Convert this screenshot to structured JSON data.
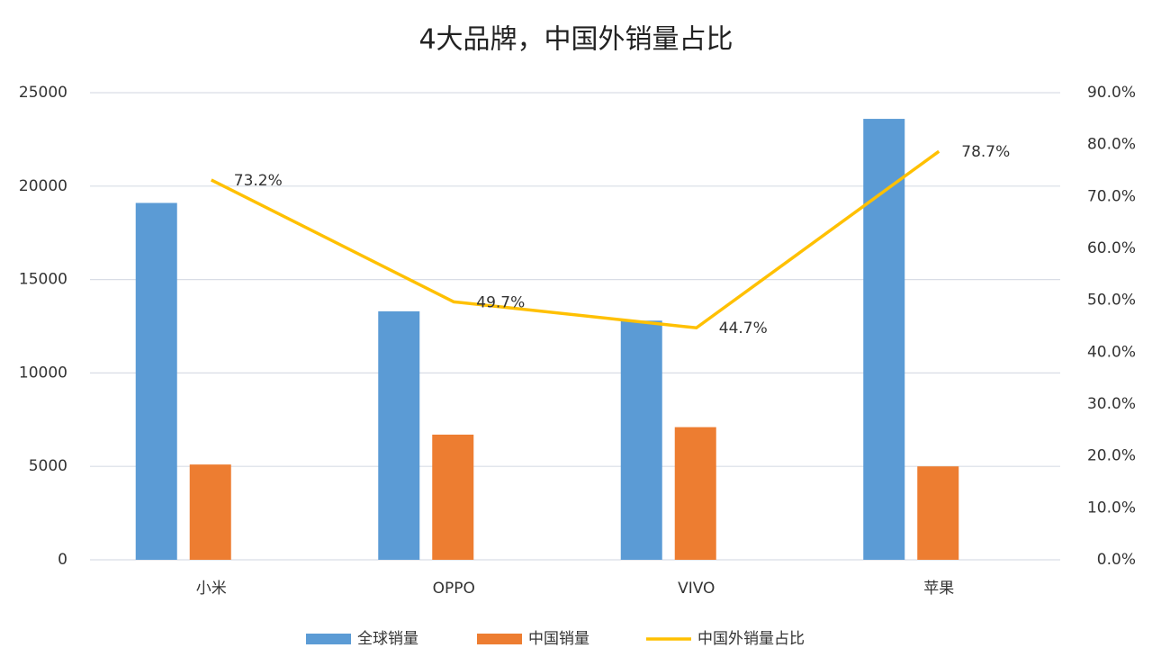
{
  "chart_data": {
    "type": "bar",
    "title": "4大品牌，中国外销量占比",
    "categories": [
      "小米",
      "OPPO",
      "VIVO",
      "苹果"
    ],
    "series": [
      {
        "name": "全球销量",
        "color": "#5b9bd5",
        "values": [
          19100,
          13300,
          12800,
          23600
        ]
      },
      {
        "name": "中国销量",
        "color": "#ed7d31",
        "values": [
          5100,
          6700,
          7100,
          5000
        ]
      },
      {
        "name": "中国外销量占比",
        "color": "#ffc000",
        "type": "line",
        "axis": "y2",
        "values": [
          73.2,
          49.7,
          44.7,
          78.7
        ],
        "value_labels": [
          "73.2%",
          "49.7%",
          "44.7%",
          "78.7%"
        ]
      }
    ],
    "ylim": [
      0,
      25000
    ],
    "yticks": [
      0,
      5000,
      10000,
      15000,
      20000,
      25000
    ],
    "y2lim": [
      0,
      90
    ],
    "y2ticks": [
      {
        "value": 0,
        "label": "0.0%"
      },
      {
        "value": 10,
        "label": "10.0%"
      },
      {
        "value": 20,
        "label": "20.0%"
      },
      {
        "value": 30,
        "label": "30.0%"
      },
      {
        "value": 40,
        "label": "40.0%"
      },
      {
        "value": 50,
        "label": "50.0%"
      },
      {
        "value": 60,
        "label": "60.0%"
      },
      {
        "value": 70,
        "label": "70.0%"
      },
      {
        "value": 80,
        "label": "80.0%"
      },
      {
        "value": 90,
        "label": "90.0%"
      }
    ],
    "grid": true,
    "legend": "bottom"
  }
}
